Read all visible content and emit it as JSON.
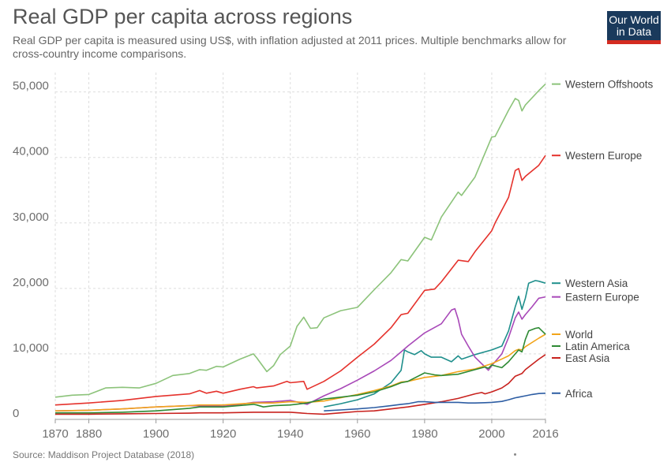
{
  "title": "Real GDP per capita across regions",
  "subtitle": "Real GDP per capita is measured using US$, with inflation adjusted at 2011 prices. Multiple benchmarks allow for cross-country income comparisons.",
  "logo": {
    "line1": "Our World",
    "line2": "in Data"
  },
  "source": "Source: Maddison Project Database (2018)",
  "chart_data": {
    "type": "line",
    "title": "Real GDP per capita across regions",
    "xlim": [
      1870,
      2016
    ],
    "ylim": [
      0,
      52000
    ],
    "x_ticks": [
      1870,
      1880,
      1900,
      1920,
      1940,
      1960,
      1980,
      2000,
      2016
    ],
    "y_ticks": [
      0,
      10000,
      20000,
      30000,
      40000,
      50000
    ],
    "y_tick_labels": [
      "0",
      "10,000",
      "20,000",
      "30,000",
      "40,000",
      "50,000"
    ],
    "grid": true,
    "legend_position": "right, labels at line ends",
    "series": [
      {
        "name": "Western Offshoots",
        "color": "#8cc37a",
        "points": [
          [
            1870,
            3400
          ],
          [
            1875,
            3700
          ],
          [
            1880,
            3800
          ],
          [
            1885,
            4800
          ],
          [
            1890,
            4900
          ],
          [
            1895,
            4800
          ],
          [
            1900,
            5500
          ],
          [
            1905,
            6700
          ],
          [
            1910,
            7000
          ],
          [
            1913,
            7600
          ],
          [
            1915,
            7500
          ],
          [
            1918,
            8100
          ],
          [
            1920,
            8000
          ],
          [
            1925,
            9200
          ],
          [
            1929,
            10000
          ],
          [
            1930,
            9400
          ],
          [
            1933,
            7300
          ],
          [
            1935,
            8200
          ],
          [
            1937,
            9900
          ],
          [
            1940,
            11200
          ],
          [
            1942,
            14200
          ],
          [
            1944,
            15600
          ],
          [
            1946,
            13900
          ],
          [
            1948,
            14000
          ],
          [
            1950,
            15500
          ],
          [
            1955,
            16600
          ],
          [
            1960,
            17100
          ],
          [
            1965,
            19800
          ],
          [
            1970,
            22400
          ],
          [
            1973,
            24400
          ],
          [
            1975,
            24200
          ],
          [
            1980,
            27800
          ],
          [
            1982,
            27400
          ],
          [
            1985,
            30900
          ],
          [
            1990,
            34700
          ],
          [
            1991,
            34200
          ],
          [
            1995,
            37000
          ],
          [
            2000,
            43100
          ],
          [
            2001,
            43200
          ],
          [
            2005,
            47200
          ],
          [
            2007,
            49000
          ],
          [
            2008,
            48700
          ],
          [
            2009,
            47100
          ],
          [
            2010,
            48000
          ],
          [
            2014,
            50200
          ],
          [
            2016,
            51200
          ]
        ]
      },
      {
        "name": "Western Europe",
        "color": "#e5322c",
        "points": [
          [
            1870,
            2200
          ],
          [
            1880,
            2500
          ],
          [
            1890,
            2900
          ],
          [
            1900,
            3500
          ],
          [
            1910,
            3900
          ],
          [
            1913,
            4400
          ],
          [
            1915,
            4000
          ],
          [
            1918,
            4300
          ],
          [
            1920,
            4000
          ],
          [
            1925,
            4600
          ],
          [
            1929,
            5000
          ],
          [
            1930,
            4800
          ],
          [
            1935,
            5100
          ],
          [
            1939,
            5800
          ],
          [
            1940,
            5600
          ],
          [
            1944,
            5800
          ],
          [
            1945,
            4600
          ],
          [
            1950,
            5800
          ],
          [
            1955,
            7400
          ],
          [
            1960,
            9500
          ],
          [
            1965,
            11500
          ],
          [
            1970,
            14000
          ],
          [
            1973,
            16000
          ],
          [
            1975,
            16200
          ],
          [
            1980,
            19700
          ],
          [
            1983,
            19900
          ],
          [
            1985,
            21000
          ],
          [
            1990,
            24300
          ],
          [
            1993,
            24100
          ],
          [
            1995,
            25600
          ],
          [
            2000,
            28800
          ],
          [
            2001,
            30000
          ],
          [
            2005,
            33900
          ],
          [
            2007,
            38000
          ],
          [
            2008,
            38300
          ],
          [
            2009,
            36500
          ],
          [
            2010,
            37100
          ],
          [
            2014,
            38800
          ],
          [
            2016,
            40300
          ]
        ]
      },
      {
        "name": "Western Asia",
        "color": "#1f8f8c",
        "points": [
          [
            1950,
            1900
          ],
          [
            1955,
            2400
          ],
          [
            1960,
            3000
          ],
          [
            1965,
            3900
          ],
          [
            1970,
            5600
          ],
          [
            1973,
            7500
          ],
          [
            1974,
            10600
          ],
          [
            1975,
            10300
          ],
          [
            1977,
            9900
          ],
          [
            1979,
            10500
          ],
          [
            1980,
            10000
          ],
          [
            1982,
            9500
          ],
          [
            1985,
            9500
          ],
          [
            1988,
            8800
          ],
          [
            1990,
            9700
          ],
          [
            1991,
            9200
          ],
          [
            1995,
            9900
          ],
          [
            2000,
            10600
          ],
          [
            2003,
            11200
          ],
          [
            2005,
            13500
          ],
          [
            2007,
            17200
          ],
          [
            2008,
            18800
          ],
          [
            2009,
            16800
          ],
          [
            2010,
            18500
          ],
          [
            2011,
            20800
          ],
          [
            2013,
            21200
          ],
          [
            2014,
            21100
          ],
          [
            2016,
            20800
          ]
        ]
      },
      {
        "name": "Eastern Europe",
        "color": "#a848b8",
        "points": [
          [
            1870,
            1300
          ],
          [
            1880,
            1400
          ],
          [
            1890,
            1600
          ],
          [
            1900,
            1900
          ],
          [
            1910,
            2100
          ],
          [
            1920,
            2000
          ],
          [
            1925,
            2300
          ],
          [
            1929,
            2600
          ],
          [
            1935,
            2700
          ],
          [
            1940,
            2900
          ],
          [
            1945,
            2300
          ],
          [
            1950,
            3600
          ],
          [
            1955,
            4700
          ],
          [
            1960,
            6000
          ],
          [
            1965,
            7400
          ],
          [
            1970,
            9000
          ],
          [
            1973,
            10300
          ],
          [
            1975,
            11200
          ],
          [
            1980,
            13200
          ],
          [
            1985,
            14600
          ],
          [
            1988,
            16700
          ],
          [
            1989,
            16900
          ],
          [
            1990,
            15300
          ],
          [
            1991,
            13000
          ],
          [
            1993,
            11200
          ],
          [
            1995,
            9500
          ],
          [
            1998,
            8000
          ],
          [
            1999,
            7500
          ],
          [
            2000,
            8200
          ],
          [
            2003,
            10000
          ],
          [
            2005,
            12500
          ],
          [
            2007,
            15500
          ],
          [
            2008,
            16400
          ],
          [
            2009,
            15300
          ],
          [
            2010,
            16000
          ],
          [
            2012,
            17200
          ],
          [
            2014,
            18500
          ],
          [
            2016,
            18700
          ]
        ]
      },
      {
        "name": "World",
        "color": "#f2a41a",
        "points": [
          [
            1870,
            1300
          ],
          [
            1880,
            1400
          ],
          [
            1890,
            1600
          ],
          [
            1900,
            1900
          ],
          [
            1910,
            2100
          ],
          [
            1913,
            2200
          ],
          [
            1920,
            2200
          ],
          [
            1929,
            2500
          ],
          [
            1935,
            2500
          ],
          [
            1940,
            2700
          ],
          [
            1945,
            2600
          ],
          [
            1950,
            2800
          ],
          [
            1955,
            3300
          ],
          [
            1960,
            3800
          ],
          [
            1965,
            4400
          ],
          [
            1970,
            5100
          ],
          [
            1973,
            5700
          ],
          [
            1975,
            5800
          ],
          [
            1980,
            6400
          ],
          [
            1985,
            6700
          ],
          [
            1990,
            7300
          ],
          [
            1995,
            7700
          ],
          [
            2000,
            8500
          ],
          [
            2005,
            9700
          ],
          [
            2007,
            10500
          ],
          [
            2008,
            10700
          ],
          [
            2009,
            10600
          ],
          [
            2010,
            11100
          ],
          [
            2014,
            12400
          ],
          [
            2016,
            13000
          ]
        ]
      },
      {
        "name": "Latin America",
        "color": "#2e8a34",
        "points": [
          [
            1870,
            1000
          ],
          [
            1880,
            1000
          ],
          [
            1890,
            1100
          ],
          [
            1900,
            1300
          ],
          [
            1910,
            1700
          ],
          [
            1913,
            1900
          ],
          [
            1920,
            1900
          ],
          [
            1929,
            2300
          ],
          [
            1930,
            2200
          ],
          [
            1932,
            1900
          ],
          [
            1935,
            2100
          ],
          [
            1940,
            2200
          ],
          [
            1945,
            2500
          ],
          [
            1950,
            3100
          ],
          [
            1955,
            3400
          ],
          [
            1960,
            3700
          ],
          [
            1965,
            4200
          ],
          [
            1970,
            5000
          ],
          [
            1973,
            5600
          ],
          [
            1975,
            5800
          ],
          [
            1980,
            7100
          ],
          [
            1983,
            6800
          ],
          [
            1985,
            6700
          ],
          [
            1990,
            6900
          ],
          [
            1995,
            7600
          ],
          [
            1998,
            8000
          ],
          [
            1999,
            7800
          ],
          [
            2000,
            8300
          ],
          [
            2003,
            7900
          ],
          [
            2005,
            8800
          ],
          [
            2007,
            10000
          ],
          [
            2008,
            10600
          ],
          [
            2009,
            10300
          ],
          [
            2010,
            12200
          ],
          [
            2011,
            13500
          ],
          [
            2013,
            13900
          ],
          [
            2014,
            14000
          ],
          [
            2015,
            13500
          ],
          [
            2016,
            13000
          ]
        ]
      },
      {
        "name": "East Asia",
        "color": "#c8221e",
        "points": [
          [
            1870,
            800
          ],
          [
            1880,
            800
          ],
          [
            1890,
            850
          ],
          [
            1900,
            900
          ],
          [
            1910,
            950
          ],
          [
            1913,
            1000
          ],
          [
            1920,
            1000
          ],
          [
            1929,
            1100
          ],
          [
            1935,
            1100
          ],
          [
            1940,
            1100
          ],
          [
            1945,
            900
          ],
          [
            1950,
            800
          ],
          [
            1955,
            1000
          ],
          [
            1960,
            1200
          ],
          [
            1965,
            1300
          ],
          [
            1970,
            1600
          ],
          [
            1975,
            1900
          ],
          [
            1980,
            2300
          ],
          [
            1985,
            2700
          ],
          [
            1990,
            3200
          ],
          [
            1995,
            3900
          ],
          [
            1997,
            4100
          ],
          [
            1998,
            3900
          ],
          [
            2000,
            4200
          ],
          [
            2003,
            4800
          ],
          [
            2005,
            5500
          ],
          [
            2007,
            6600
          ],
          [
            2008,
            6800
          ],
          [
            2009,
            7000
          ],
          [
            2010,
            7600
          ],
          [
            2012,
            8400
          ],
          [
            2014,
            9200
          ],
          [
            2016,
            9900
          ]
        ]
      },
      {
        "name": "Africa",
        "color": "#2d5da3",
        "points": [
          [
            1950,
            1300
          ],
          [
            1955,
            1450
          ],
          [
            1960,
            1600
          ],
          [
            1965,
            1800
          ],
          [
            1970,
            2100
          ],
          [
            1973,
            2300
          ],
          [
            1975,
            2400
          ],
          [
            1978,
            2700
          ],
          [
            1980,
            2700
          ],
          [
            1983,
            2600
          ],
          [
            1985,
            2600
          ],
          [
            1990,
            2600
          ],
          [
            1993,
            2500
          ],
          [
            1995,
            2500
          ],
          [
            1998,
            2550
          ],
          [
            2000,
            2600
          ],
          [
            2003,
            2750
          ],
          [
            2005,
            3000
          ],
          [
            2007,
            3300
          ],
          [
            2008,
            3400
          ],
          [
            2010,
            3600
          ],
          [
            2012,
            3800
          ],
          [
            2014,
            3950
          ],
          [
            2016,
            4000
          ]
        ]
      }
    ]
  }
}
